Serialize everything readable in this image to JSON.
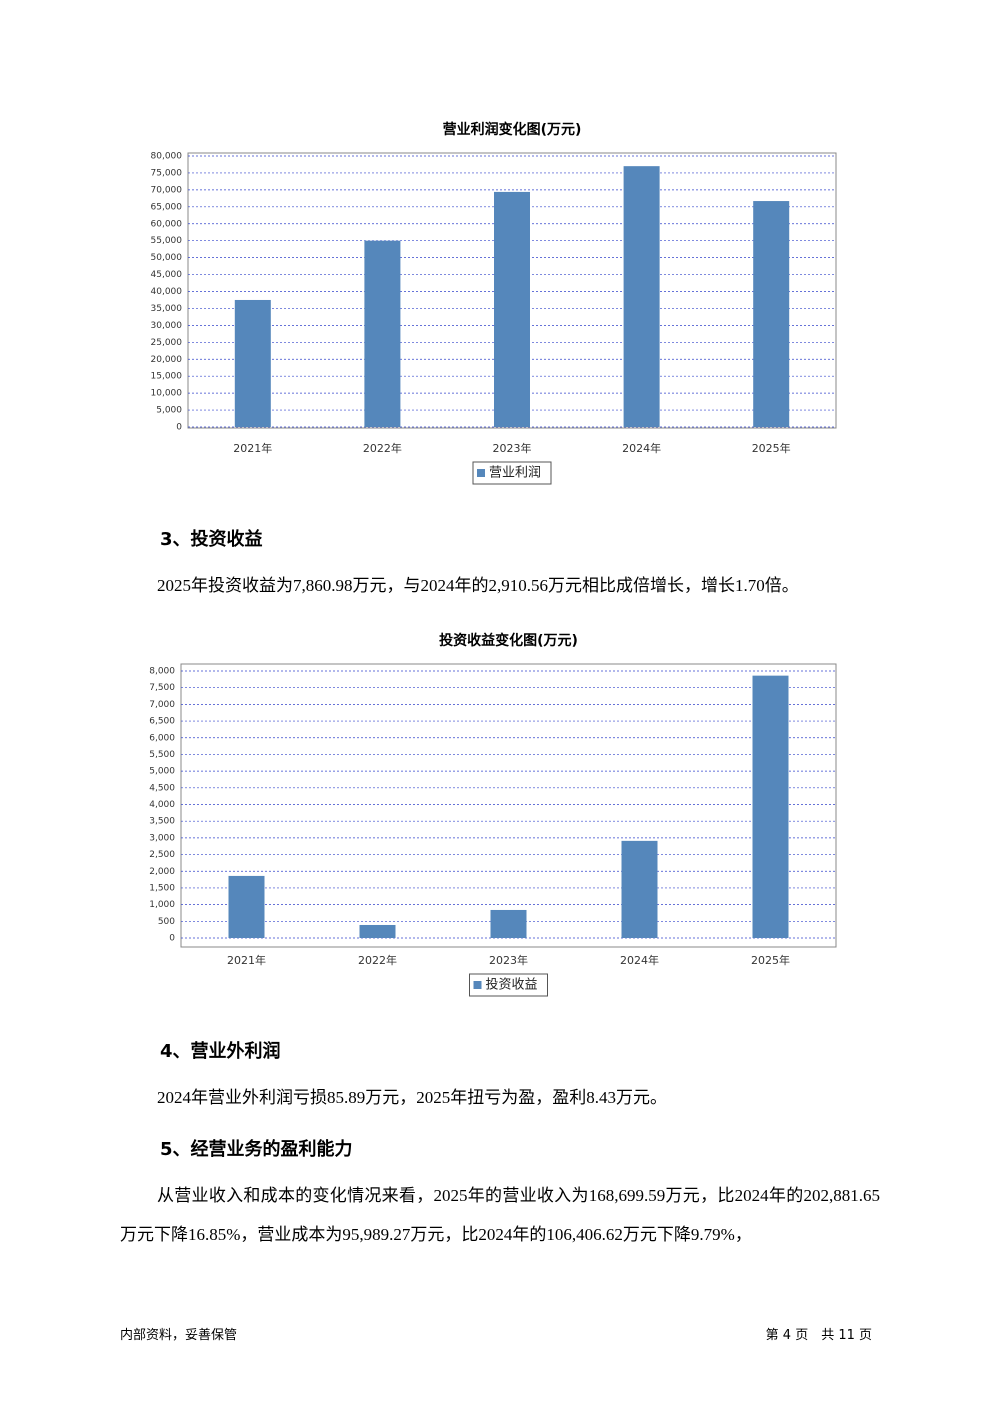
{
  "chart_data": [
    {
      "type": "bar",
      "title": "营业利润变化图(万元)",
      "categories": [
        "2021年",
        "2022年",
        "2023年",
        "2024年",
        "2025年"
      ],
      "series": [
        {
          "name": "营业利润",
          "color": "#5587bb",
          "values": [
            37500,
            55000,
            69400,
            77000,
            66700
          ]
        }
      ],
      "ylim": [
        0,
        80000
      ],
      "yticks": [
        0,
        {
          "value": 5000,
          "label": "5,000"
        },
        {
          "value": 10000,
          "label": "10,000"
        },
        {
          "value": 15000,
          "label": "15,000"
        },
        {
          "value": 20000,
          "label": "20,000"
        },
        {
          "value": 25000,
          "label": "25,000"
        },
        {
          "value": 30000,
          "label": "30,000"
        },
        {
          "value": 35000,
          "label": "35,000"
        },
        {
          "value": 40000,
          "label": "40,000"
        },
        {
          "value": 45000,
          "label": "45,000"
        },
        {
          "value": 50000,
          "label": "50,000"
        },
        {
          "value": 55000,
          "label": "55,000"
        },
        {
          "value": 60000,
          "label": "60,000"
        },
        {
          "value": 65000,
          "label": "65,000"
        },
        {
          "value": 70000,
          "label": "70,000"
        },
        {
          "value": 75000,
          "label": "75,000"
        },
        {
          "value": 80000,
          "label": "80,000"
        }
      ],
      "grid": true,
      "legend": "bottom"
    },
    {
      "type": "bar",
      "title": "投资收益变化图(万元)",
      "categories": [
        "2021年",
        "2022年",
        "2023年",
        "2024年",
        "2025年"
      ],
      "series": [
        {
          "name": "投资收益",
          "color": "#5587bb",
          "values": [
            1860,
            390,
            840,
            2910.56,
            7860.98
          ]
        }
      ],
      "ylim": [
        0,
        8000
      ],
      "yticks": [
        0,
        500,
        {
          "value": 1000,
          "label": "1,000"
        },
        {
          "value": 1500,
          "label": "1,500"
        },
        {
          "value": 2000,
          "label": "2,000"
        },
        {
          "value": 2500,
          "label": "2,500"
        },
        {
          "value": 3000,
          "label": "3,000"
        },
        {
          "value": 3500,
          "label": "3,500"
        },
        {
          "value": 4000,
          "label": "4,000"
        },
        {
          "value": 4500,
          "label": "4,500"
        },
        {
          "value": 5000,
          "label": "5,000"
        },
        {
          "value": 5500,
          "label": "5,500"
        },
        {
          "value": 6000,
          "label": "6,000"
        },
        {
          "value": 6500,
          "label": "6,500"
        },
        {
          "value": 7000,
          "label": "7,000"
        },
        {
          "value": 7500,
          "label": "7,500"
        },
        {
          "value": 8000,
          "label": "8,000"
        }
      ],
      "grid": true,
      "legend": "bottom"
    }
  ],
  "sections": [
    {
      "heading": "3、投资收益",
      "paragraph": "2025年投资收益为7,860.98万元，与2024年的2,910.56万元相比成倍增长，增长1.70倍。"
    },
    {
      "heading": "4、营业外利润",
      "paragraph": "2024年营业外利润亏损85.89万元，2025年扭亏为盈，盈利8.43万元。"
    },
    {
      "heading": "5、经营业务的盈利能力",
      "paragraph": "从营业收入和成本的变化情况来看，2025年的营业收入为168,699.59万元，比2024年的202,881.65万元下降16.85%，营业成本为95,989.27万元，比2024年的106,406.62万元下降9.79%，"
    }
  ],
  "footer": {
    "left": "内部资料，妥善保管",
    "right": "第 4 页　共 11 页"
  }
}
